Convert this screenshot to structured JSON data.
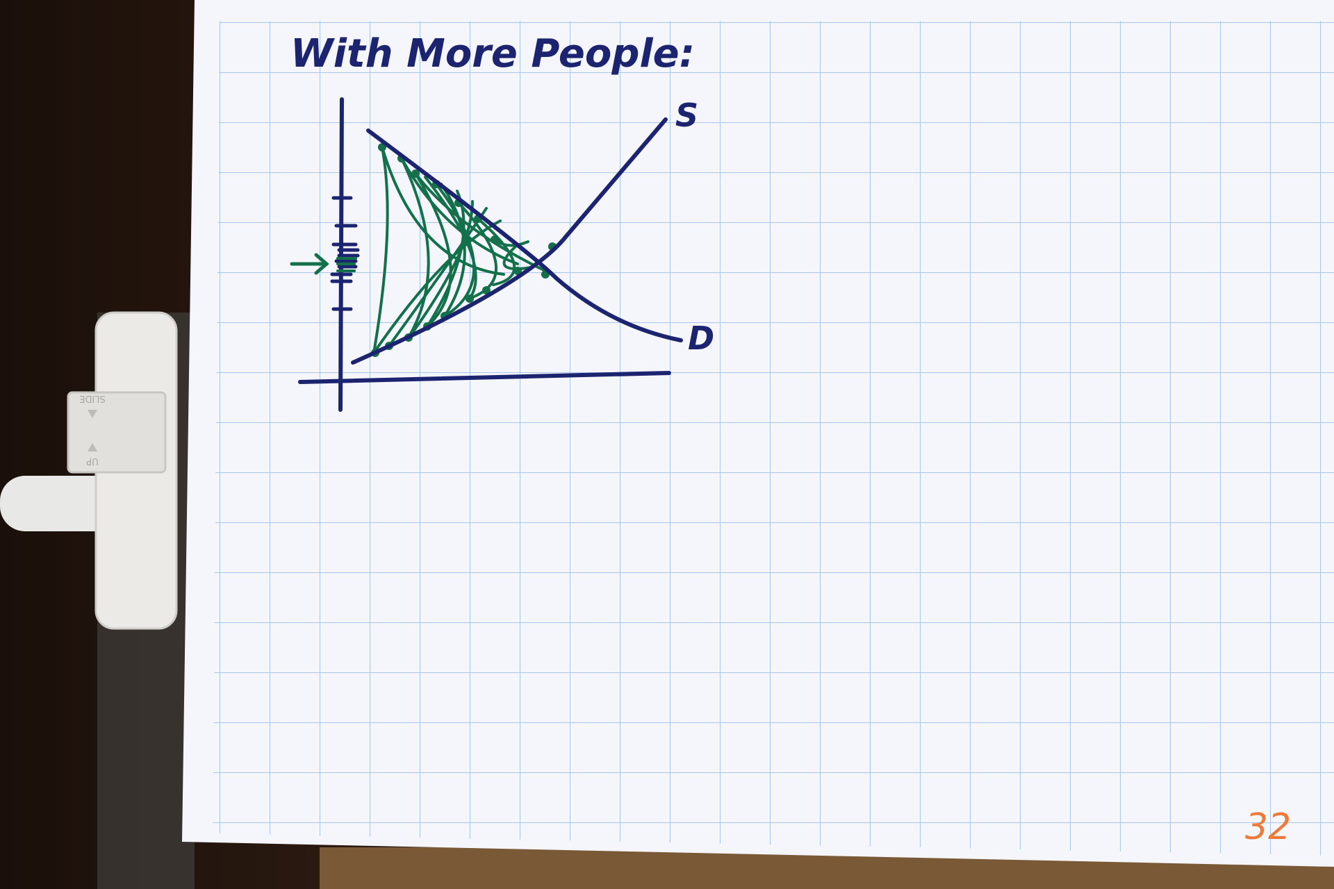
{
  "page": {
    "title": "With More People:",
    "page_number": "32"
  },
  "diagram": {
    "supply_label": "S",
    "demand_label": "D"
  },
  "colors": {
    "ink_blue": "#1c2470",
    "ink_green": "#13704a",
    "page_number_orange": "#ee7a3a",
    "grid_blue": "#a9c6ea",
    "paper": "#f4f6fb"
  },
  "clip": {
    "label_top": "SLIDE",
    "label_bottom": "UP"
  }
}
